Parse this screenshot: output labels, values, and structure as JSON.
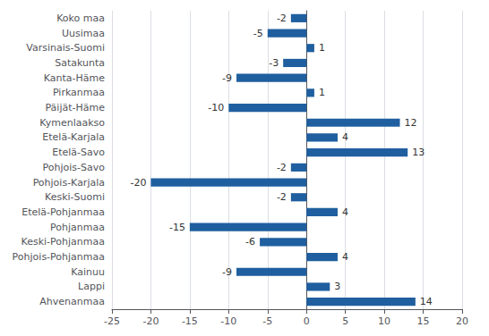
{
  "chart_data": {
    "type": "bar",
    "orientation": "horizontal",
    "categories": [
      "Ahvenanmaa",
      "Lappi",
      "Kainuu",
      "Pohjois-Pohjanmaa",
      "Keski-Pohjanmaa",
      "Pohjanmaa",
      "Etelä-Pohjanmaa",
      "Keski-Suomi",
      "Pohjois-Karjala",
      "Pohjois-Savo",
      "Etelä-Savo",
      "Etelä-Karjala",
      "Kymenlaakso",
      "Päijät-Häme",
      "Pirkanmaa",
      "Kanta-Häme",
      "Satakunta",
      "Varsinais-Suomi",
      "Uusimaa",
      "Koko maa"
    ],
    "values": [
      14,
      3,
      -9,
      4,
      -6,
      -15,
      4,
      -2,
      -20,
      -2,
      13,
      4,
      12,
      -10,
      1,
      -9,
      -3,
      1,
      -5,
      -2
    ],
    "color": "#1F5F9F",
    "xlim": [
      -25,
      20
    ],
    "xticks": [
      -25,
      -20,
      -15,
      -10,
      -5,
      0,
      5,
      10,
      15,
      20
    ],
    "grid": true,
    "data_labels": true
  }
}
